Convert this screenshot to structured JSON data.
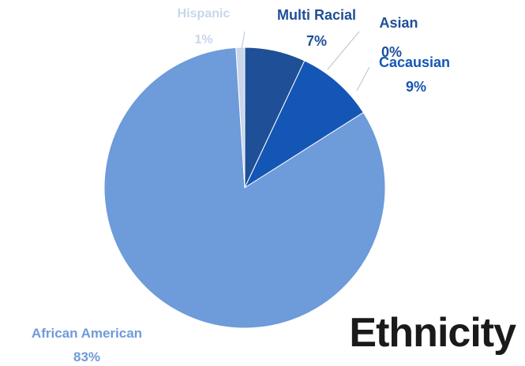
{
  "chart_data": {
    "type": "pie",
    "title": "Ethnicity",
    "slices": [
      {
        "name": "Multi Racial",
        "value": 7,
        "label": "7%",
        "color": "#1f4f96"
      },
      {
        "name": "Asian",
        "value": 0,
        "label": "0%",
        "color": "#2f6fc2"
      },
      {
        "name": "Cacausian",
        "value": 9,
        "label": "9%",
        "color": "#1456b5"
      },
      {
        "name": "African American",
        "value": 83,
        "label": "83%",
        "color": "#6e9bd9"
      },
      {
        "name": "Hispanic",
        "value": 1,
        "label": "1%",
        "color": "#c8d6ea"
      }
    ],
    "start_angle_deg": 0,
    "direction": "clockwise",
    "legend": "none"
  }
}
